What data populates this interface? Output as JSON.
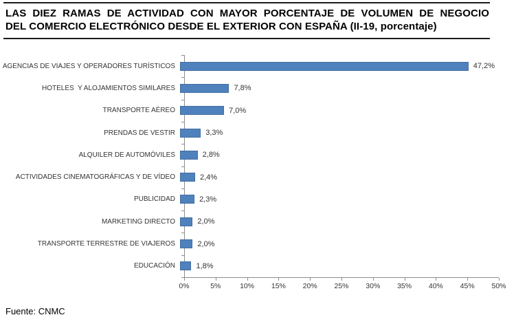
{
  "title": {
    "line1": "LAS DIEZ RAMAS DE ACTIVIDAD CON MAYOR PORCENTAJE DE VOLUMEN DE NEGOCIO",
    "line2": "DEL COMERCIO ELECTRÓNICO DESDE EL EXTERIOR CON ESPAÑA (II-19, porcentaje)"
  },
  "source": "Fuente: CNMC",
  "chart_data": {
    "type": "bar",
    "orientation": "horizontal",
    "title": "LAS DIEZ RAMAS DE ACTIVIDAD CON MAYOR PORCENTAJE DE VOLUMEN DE NEGOCIO DEL COMERCIO ELECTRÓNICO DESDE EL EXTERIOR CON ESPAÑA (II-19, porcentaje)",
    "categories": [
      "AGENCIAS DE VIAJES Y OPERADORES TURÍSTICOS",
      "HOTELES  Y ALOJAMIENTOS SIMILARES",
      "TRANSPORTE AÉREO",
      "PRENDAS DE VESTIR",
      "ALQUILER DE AUTOMÓVILES",
      "ACTIVIDADES CINEMATOGRÁFICAS Y DE VÍDEO",
      "PUBLICIDAD",
      "MARKETING DIRECTO",
      "TRANSPORTE TERRESTRE DE VIAJEROS",
      "EDUCACIÓN"
    ],
    "values": [
      47.2,
      7.8,
      7.0,
      3.3,
      2.8,
      2.4,
      2.3,
      2.0,
      2.0,
      1.8
    ],
    "value_labels": [
      "47,2%",
      "7,8%",
      "7,0%",
      "3,3%",
      "2,8%",
      "2,4%",
      "2,3%",
      "2,0%",
      "2,0%",
      "1,8%"
    ],
    "x_ticks": [
      "0%",
      "5%",
      "10%",
      "15%",
      "20%",
      "25%",
      "30%",
      "35%",
      "40%",
      "45%",
      "50%"
    ],
    "xlim": [
      0,
      50
    ],
    "xlabel": "",
    "ylabel": "",
    "grid": false,
    "legend": false,
    "bar_color": "#4F81BD",
    "axis_color": "#8C8C8C"
  }
}
